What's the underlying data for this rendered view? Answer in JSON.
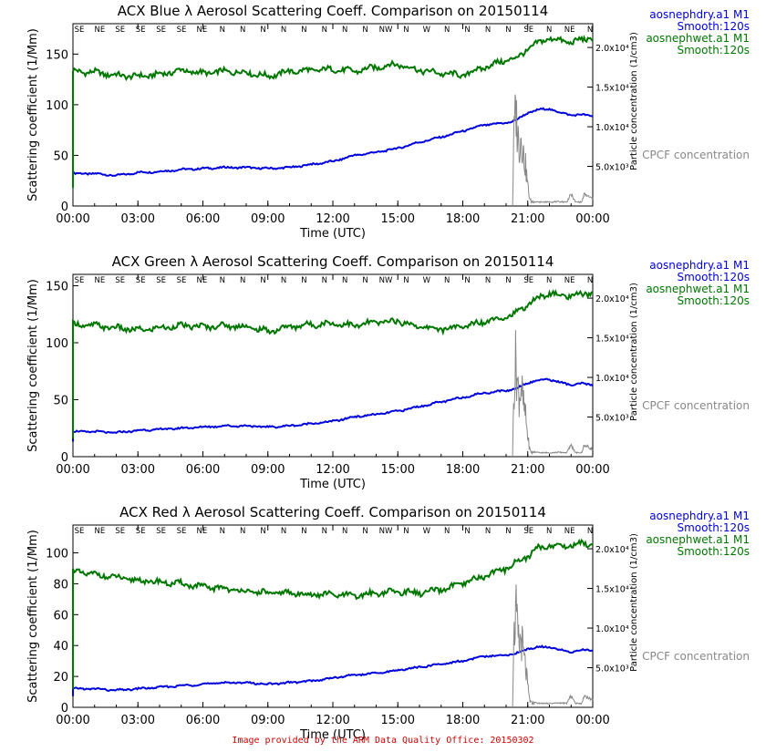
{
  "footer_note": "Image provided by the ARM Data Quality Office: 20150302",
  "colors": {
    "dry": "#0000dd",
    "wet": "#007700",
    "cpcf": "#888888",
    "axis": "#000000",
    "footer": "#cc0000"
  },
  "legend": {
    "dry_name": "aosnephdry.a1 M1",
    "dry_smooth": "Smooth:120s",
    "wet_name": "aosnephwet.a1 M1",
    "wet_smooth": "Smooth:120s",
    "cpcf_name": "CPCF concentration"
  },
  "wind_directions": [
    "SE",
    "NE",
    "SE",
    "SE",
    "SE",
    "SE",
    "NE",
    "N",
    "N",
    "N",
    "N",
    "N",
    "N",
    "N",
    "N",
    "NW",
    "N",
    "W",
    "N",
    "N",
    "N",
    "N",
    "SE",
    "N",
    "NE",
    "N"
  ],
  "chart_data": [
    {
      "type": "line",
      "title": "ACX Blue λ Aerosol Scattering Coeff. Comparison on 20150114",
      "xlabel": "Time (UTC)",
      "ylabel": "Scattering coefficient (1/Mm)",
      "y2label": "Particle concentration (1/cm3)",
      "xticks": [
        "00:00",
        "03:00",
        "06:00",
        "09:00",
        "12:00",
        "15:00",
        "18:00",
        "21:00",
        "00:00"
      ],
      "xlim": [
        0,
        24
      ],
      "ylim": [
        0,
        180
      ],
      "yticks": [
        0,
        50,
        100,
        150
      ],
      "y2lim": [
        0,
        23000
      ],
      "y2ticks": [
        "5.0x10³",
        "1.0x10⁴",
        "1.5x10⁴",
        "2.0x10⁴"
      ],
      "y2tick_values": [
        5000,
        10000,
        15000,
        20000
      ],
      "series": [
        {
          "name": "aosnephdry.a1 M1",
          "x": [
            0,
            1,
            2,
            3,
            4,
            5,
            6,
            7,
            8,
            9,
            10,
            11,
            12,
            13,
            14,
            15,
            16,
            17,
            18,
            19,
            20,
            20.5,
            21,
            21.5,
            22,
            22.5,
            23,
            23.5,
            24
          ],
          "values": [
            32,
            32,
            30,
            33,
            34,
            36,
            37,
            38,
            38,
            37,
            38,
            41,
            44,
            50,
            53,
            57,
            63,
            68,
            74,
            80,
            82,
            85,
            92,
            95,
            96,
            92,
            90,
            90,
            89
          ]
        },
        {
          "name": "aosnephwet.a1 M1",
          "x": [
            0,
            1,
            2,
            3,
            4,
            5,
            6,
            7,
            8,
            9,
            10,
            11,
            12,
            13,
            14,
            15,
            16,
            17,
            18,
            19,
            20,
            20.5,
            21,
            21.5,
            22,
            22.5,
            23,
            23.5,
            24
          ],
          "values": [
            133,
            132,
            129,
            128,
            130,
            134,
            131,
            133,
            132,
            128,
            133,
            134,
            135,
            133,
            137,
            140,
            134,
            131,
            129,
            137,
            144,
            146,
            155,
            161,
            166,
            163,
            162,
            164,
            166
          ]
        },
        {
          "name": "CPCF concentration",
          "x": [
            20.3,
            20.35,
            20.45,
            20.5,
            20.6,
            20.7,
            20.8,
            20.9,
            21.0,
            21.1,
            21.2,
            21.3,
            21.5,
            22.0,
            22.5,
            22.8,
            23.0,
            23.2,
            23.5,
            23.6,
            24
          ],
          "values": [
            0,
            8000,
            12500,
            10000,
            7500,
            9000,
            6500,
            5000,
            2500,
            800,
            500,
            600,
            500,
            500,
            550,
            500,
            1500,
            500,
            500,
            1500,
            900
          ]
        }
      ]
    },
    {
      "type": "line",
      "title": "ACX Green λ Aerosol Scattering Coeff. Comparison on 20150114",
      "xlabel": "Time (UTC)",
      "ylabel": "Scattering coefficient (1/Mm)",
      "y2label": "Particle concentration (1/cm3)",
      "xticks": [
        "00:00",
        "03:00",
        "06:00",
        "09:00",
        "12:00",
        "15:00",
        "18:00",
        "21:00",
        "00:00"
      ],
      "xlim": [
        0,
        24
      ],
      "ylim": [
        0,
        160
      ],
      "yticks": [
        0,
        50,
        100,
        150
      ],
      "y2lim": [
        0,
        23000
      ],
      "y2ticks": [
        "5.0x10³",
        "1.0x10⁴",
        "1.5x10⁴",
        "2.0x10⁴"
      ],
      "y2tick_values": [
        5000,
        10000,
        15000,
        20000
      ],
      "series": [
        {
          "name": "aosnephdry.a1 M1",
          "x": [
            0,
            1,
            2,
            3,
            4,
            5,
            6,
            7,
            8,
            9,
            10,
            11,
            12,
            13,
            14,
            15,
            16,
            17,
            18,
            19,
            20,
            20.5,
            21,
            21.5,
            22,
            22.5,
            23,
            23.5,
            24
          ],
          "values": [
            22,
            22,
            21,
            23,
            24,
            25,
            26,
            27,
            27,
            26,
            27,
            29,
            31,
            35,
            37,
            40,
            44,
            48,
            52,
            56,
            58,
            60,
            65,
            67,
            68,
            65,
            63,
            64,
            63
          ]
        },
        {
          "name": "aosnephwet.a1 M1",
          "x": [
            0,
            1,
            2,
            3,
            4,
            5,
            6,
            7,
            8,
            9,
            10,
            11,
            12,
            13,
            14,
            15,
            16,
            17,
            18,
            19,
            20,
            20.5,
            21,
            21.5,
            22,
            22.5,
            23,
            23.5,
            24
          ],
          "values": [
            116,
            115,
            113,
            111,
            113,
            115,
            114,
            115,
            114,
            110,
            114,
            116,
            117,
            115,
            118,
            119,
            114,
            112,
            114,
            119,
            123,
            126,
            134,
            139,
            144,
            141,
            141,
            142,
            144
          ]
        },
        {
          "name": "CPCF concentration",
          "x": [
            20.3,
            20.35,
            20.45,
            20.5,
            20.6,
            20.7,
            20.8,
            20.9,
            21.0,
            21.1,
            21.2,
            21.3,
            21.5,
            22.0,
            22.5,
            22.8,
            23.0,
            23.2,
            23.5,
            23.6,
            24
          ],
          "values": [
            0,
            8000,
            12500,
            10000,
            7500,
            9000,
            6500,
            5000,
            2500,
            800,
            500,
            600,
            500,
            500,
            550,
            500,
            1500,
            500,
            500,
            1500,
            900
          ]
        }
      ]
    },
    {
      "type": "line",
      "title": "ACX Red λ Aerosol Scattering Coeff. Comparison on 20150114",
      "xlabel": "Time (UTC)",
      "ylabel": "Scattering coefficient (1/Mm)",
      "y2label": "Particle concentration (1/cm3)",
      "xticks": [
        "00:00",
        "03:00",
        "06:00",
        "09:00",
        "12:00",
        "15:00",
        "18:00",
        "21:00",
        "00:00"
      ],
      "xlim": [
        0,
        24
      ],
      "ylim": [
        0,
        118
      ],
      "yticks": [
        0,
        20,
        40,
        60,
        80,
        100
      ],
      "y2lim": [
        0,
        23000
      ],
      "y2ticks": [
        "5.0x10³",
        "1.0x10⁴",
        "1.5x10⁴",
        "2.0x10⁴"
      ],
      "y2tick_values": [
        5000,
        10000,
        15000,
        20000
      ],
      "series": [
        {
          "name": "aosnephdry.a1 M1",
          "x": [
            0,
            1,
            2,
            3,
            4,
            5,
            6,
            7,
            8,
            9,
            10,
            11,
            12,
            13,
            14,
            15,
            16,
            17,
            18,
            19,
            20,
            20.5,
            21,
            21.5,
            22,
            22.5,
            23,
            23.5,
            24
          ],
          "values": [
            12,
            12,
            11,
            12,
            13,
            14,
            15,
            16,
            16,
            15,
            16,
            17,
            19,
            21,
            22,
            24,
            26,
            28,
            30,
            33,
            34,
            35,
            38,
            39,
            39,
            37,
            36,
            37,
            37
          ]
        },
        {
          "name": "aosnephwet.a1 M1",
          "x": [
            0,
            1,
            2,
            3,
            4,
            5,
            6,
            7,
            8,
            9,
            10,
            11,
            12,
            13,
            14,
            15,
            16,
            17,
            18,
            19,
            20,
            20.5,
            21,
            21.5,
            22,
            22.5,
            23,
            23.5,
            24
          ],
          "values": [
            88,
            86,
            84,
            82,
            81,
            80,
            78,
            77,
            75,
            74,
            74,
            73,
            73,
            72,
            74,
            75,
            74,
            76,
            80,
            85,
            90,
            94,
            98,
            103,
            105,
            104,
            105,
            106,
            106
          ]
        },
        {
          "name": "CPCF concentration",
          "x": [
            20.3,
            20.35,
            20.45,
            20.5,
            20.6,
            20.7,
            20.8,
            20.9,
            21.0,
            21.1,
            21.2,
            21.3,
            21.5,
            22.0,
            22.5,
            22.8,
            23.0,
            23.2,
            23.5,
            23.6,
            24
          ],
          "values": [
            0,
            8000,
            12500,
            10000,
            7500,
            9000,
            6500,
            5000,
            2500,
            800,
            500,
            600,
            500,
            500,
            550,
            500,
            1500,
            500,
            500,
            1500,
            900
          ]
        }
      ]
    }
  ]
}
